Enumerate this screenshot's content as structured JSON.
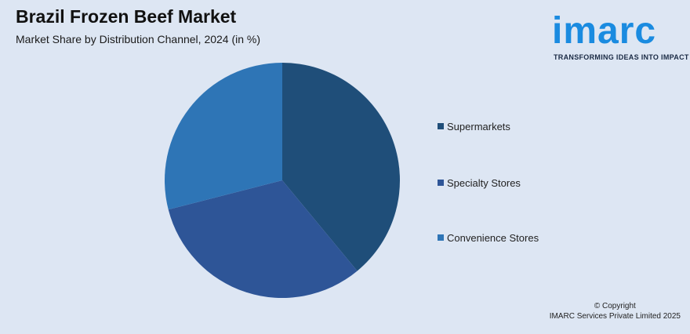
{
  "header": {
    "title": "Brazil Frozen Beef Market",
    "subtitle": "Market Share by Distribution Channel, 2024 (in %)"
  },
  "logo": {
    "wordmark": "imarc",
    "tagline": "TRANSFORMING IDEAS INTO IMPACT"
  },
  "footer": {
    "line1": "© Copyright",
    "line2": "IMARC Services Private Limited 2025"
  },
  "colors": {
    "background": "#dde6f3",
    "brand": "#1a8be0"
  },
  "chart_data": {
    "type": "pie",
    "title": "Brazil Frozen Beef Market",
    "subtitle": "Market Share by Distribution Channel, 2024 (in %)",
    "legend_position": "right",
    "start_angle_deg": 0,
    "direction": "clockwise",
    "slices": [
      {
        "label": "Supermarkets",
        "value": 39,
        "color": "#1f4e79"
      },
      {
        "label": "Specialty Stores",
        "value": 32,
        "color": "#2e5597"
      },
      {
        "label": "Convenience Stores",
        "value": 29,
        "color": "#2e75b6"
      }
    ]
  }
}
